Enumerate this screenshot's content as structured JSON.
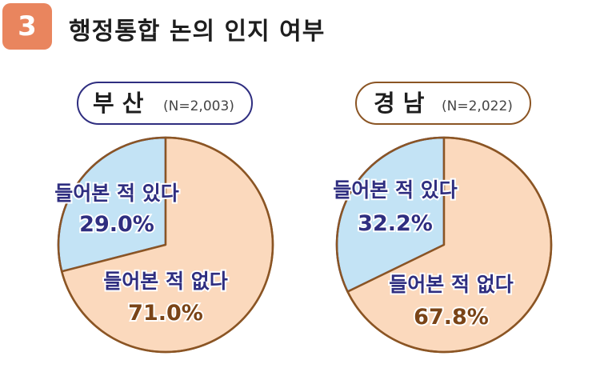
{
  "header": {
    "number": "3",
    "title": "행정통합 논의 인지 여부"
  },
  "colors": {
    "badge": "#e9855e",
    "heard": "#c3e3f5",
    "not_heard": "#fbd9bd",
    "pie_stroke": "#8b5524",
    "busan_frame": "#2f2e80",
    "gyeongnam_frame": "#8b5524",
    "label_text": "#2f2e80",
    "value_text": "#7a4417"
  },
  "chart_data": [
    {
      "type": "pie",
      "title": "부 산",
      "sample": "(N=2,003)",
      "series": [
        {
          "name": "들어본 적 있다",
          "value": 29.0,
          "label": "29.0%",
          "color": "#c3e3f5"
        },
        {
          "name": "들어본 적 없다",
          "value": 71.0,
          "label": "71.0%",
          "color": "#fbd9bd"
        }
      ]
    },
    {
      "type": "pie",
      "title": "경 남",
      "sample": "(N=2,022)",
      "series": [
        {
          "name": "들어본 적 있다",
          "value": 32.2,
          "label": "32.2%",
          "color": "#c3e3f5"
        },
        {
          "name": "들어본 적 없다",
          "value": 67.8,
          "label": "67.8%",
          "color": "#fbd9bd"
        }
      ]
    }
  ]
}
